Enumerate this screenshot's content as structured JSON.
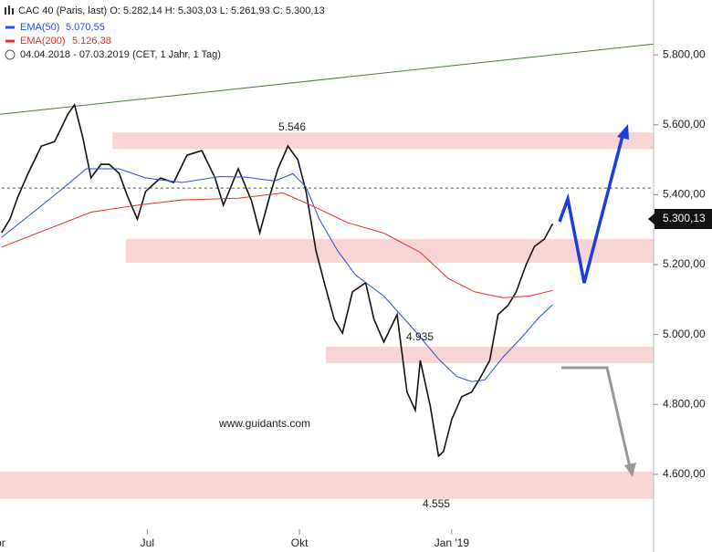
{
  "chart_data": {
    "type": "line",
    "header": "CAC 40 (Paris, last)  O: 5.282,14  H: 5.303,03  L: 5.261,93  C: 5.300,13",
    "period": "04.04.2018 - 07.03.2019  (CET, 1 Jahr, 1 Tag)",
    "watermark": "www.guidants.com",
    "last_price_label": "5.300,13",
    "annotations": [
      "5.546",
      "4.935",
      "4.555"
    ],
    "xlim": [
      -1,
      394
    ],
    "ylim": [
      4443,
      5957
    ],
    "xticks": [
      {
        "value": -3,
        "label": "Apr"
      },
      {
        "value": 88,
        "label": "Jul"
      },
      {
        "value": 180,
        "label": "Okt"
      },
      {
        "value": 272,
        "label": "Jan '19"
      }
    ],
    "yticks": [
      {
        "value": 4600,
        "label": "4.600,00"
      },
      {
        "value": 4800,
        "label": "4.800,00"
      },
      {
        "value": 5000,
        "label": "5.000,00"
      },
      {
        "value": 5200,
        "label": "5.200,00"
      },
      {
        "value": 5400,
        "label": "5.400,00"
      },
      {
        "value": 5600,
        "label": "5.600,00"
      },
      {
        "value": 5800,
        "label": "5.800,00"
      }
    ],
    "reference_level": 5419,
    "trendline": {
      "x": [
        -1,
        394
      ],
      "values": [
        5630,
        5831
      ],
      "color": "#4a7a3a"
    },
    "zones": [
      {
        "x": 67,
        "low": 5531,
        "high": 5578
      },
      {
        "x": 75,
        "low": 5205,
        "high": 5273
      },
      {
        "x": 196,
        "low": 4918,
        "high": 4965
      },
      {
        "x": -1,
        "low": 4530,
        "high": 4608
      }
    ],
    "series": [
      {
        "name": "CAC 40 (Paris, last)",
        "color": "#111111",
        "x": [
          0,
          5,
          10,
          16,
          24,
          32,
          40,
          44,
          49,
          54,
          60,
          65,
          71,
          76,
          82,
          87,
          96,
          104,
          112,
          121,
          129,
          134,
          143,
          151,
          156,
          162,
          167,
          173,
          179,
          184,
          190,
          195,
          201,
          206,
          212,
          220,
          225,
          231,
          239,
          245,
          250,
          253,
          259,
          264,
          267,
          272,
          278,
          284,
          289,
          295,
          300,
          306,
          311,
          317,
          322,
          328,
          333
        ],
        "values": [
          5291,
          5330,
          5396,
          5461,
          5539,
          5552,
          5630,
          5657,
          5565,
          5448,
          5487,
          5487,
          5461,
          5396,
          5330,
          5409,
          5448,
          5435,
          5513,
          5526,
          5448,
          5370,
          5474,
          5383,
          5291,
          5396,
          5474,
          5539,
          5500,
          5409,
          5239,
          5148,
          5043,
          5004,
          5122,
          5148,
          5043,
          4978,
          5057,
          4835,
          4783,
          4926,
          4796,
          4652,
          4665,
          4757,
          4822,
          4835,
          4874,
          4926,
          5057,
          5083,
          5122,
          5200,
          5252,
          5273,
          5317
        ]
      },
      {
        "name": "EMA(50)",
        "legend_value": "5.070,55",
        "color": "#2b4fd8",
        "x": [
          0,
          21,
          38,
          51,
          71,
          87,
          109,
          132,
          148,
          165,
          176,
          184,
          192,
          203,
          214,
          231,
          248,
          264,
          275,
          284,
          292,
          303,
          314,
          325,
          333
        ],
        "values": [
          5278,
          5357,
          5422,
          5474,
          5474,
          5448,
          5435,
          5452,
          5450,
          5439,
          5460,
          5422,
          5330,
          5240,
          5170,
          5110,
          5020,
          4930,
          4880,
          4865,
          4870,
          4935,
          4990,
          5050,
          5085
        ]
      },
      {
        "name": "EMA(200)",
        "legend_value": "5.126,38",
        "color": "#e0322a",
        "x": [
          0,
          27,
          54,
          82,
          109,
          143,
          170,
          187,
          209,
          231,
          253,
          270,
          286,
          303,
          319,
          333
        ],
        "values": [
          5250,
          5300,
          5350,
          5370,
          5385,
          5390,
          5405,
          5370,
          5320,
          5290,
          5235,
          5160,
          5122,
          5105,
          5110,
          5126
        ]
      }
    ]
  }
}
